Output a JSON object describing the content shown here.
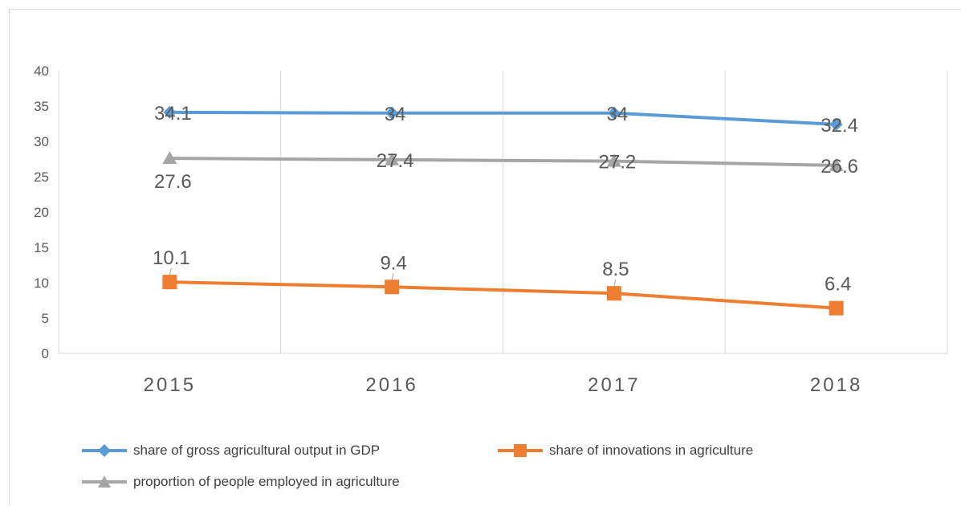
{
  "chart_data": {
    "type": "line",
    "categories": [
      "2015",
      "2016",
      "2017",
      "2018"
    ],
    "ylim": [
      0,
      40
    ],
    "yticks": [
      0,
      5,
      10,
      15,
      20,
      25,
      30,
      35,
      40
    ],
    "grid": "vertical",
    "legend_position": "bottom",
    "series": [
      {
        "name": "share of gross agricultural output in GDP",
        "values": [
          34.1,
          34,
          34,
          32.4
        ],
        "labels": [
          "34.1",
          "34",
          "34",
          "32.4"
        ],
        "color": "#5b9bd5",
        "marker": "diamond"
      },
      {
        "name": "share of innovations in agriculture",
        "values": [
          10.1,
          9.4,
          8.5,
          6.4
        ],
        "labels": [
          "10.1",
          "9.4",
          "8.5",
          "6.4"
        ],
        "color": "#ed7d31",
        "marker": "square"
      },
      {
        "name": "proportion of people employed in agriculture",
        "values": [
          27.6,
          27.4,
          27.2,
          26.6
        ],
        "labels": [
          "27.6",
          "27.4",
          "27.2",
          "26.6"
        ],
        "color": "#a5a5a5",
        "marker": "triangle"
      }
    ]
  }
}
